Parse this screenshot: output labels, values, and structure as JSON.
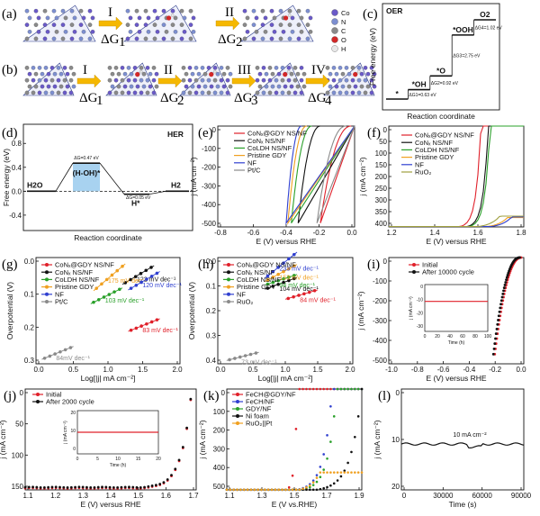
{
  "panel_a": {
    "label": "(a)",
    "steps": [
      "I",
      "II"
    ],
    "dg": [
      "ΔG",
      "ΔG"
    ],
    "dg_sub": [
      "1",
      "2"
    ]
  },
  "panel_b": {
    "label": "(b)",
    "steps": [
      "I",
      "II",
      "III",
      "IV"
    ],
    "dg": [
      "ΔG",
      "ΔG",
      "ΔG",
      "ΔG"
    ],
    "dg_sub": [
      "1",
      "2",
      "3",
      "4"
    ]
  },
  "atom_legend": [
    "Co",
    "N",
    "C",
    "O",
    "H"
  ],
  "colors": {
    "Co": "#6a5ac8",
    "N": "#7d8fd0",
    "C": "#8a8a8a",
    "O": "#d22828",
    "H": "#e8e8e8",
    "red": "#e0202a",
    "black": "#111111",
    "green": "#2aa02a",
    "orange": "#f0a020",
    "blue": "#3040d0",
    "gray": "#8a8a8a",
    "olive": "#a0a040",
    "box": "#a8d2f0"
  },
  "chart_data": [
    {
      "id": "c",
      "type": "energy-diagram",
      "label": "(c)",
      "title": "OER",
      "ylabel": "Free energy (eV)",
      "xlabel": "Reaction coordinate",
      "states": [
        "*",
        "*OH",
        "*O",
        "*OOH",
        "O2"
      ],
      "steps": [
        {
          "text": "ΔG1=0.63 eV",
          "value": 0.63
        },
        {
          "text": "ΔG2=0.92 eV",
          "value": 0.92
        },
        {
          "text": "ΔG3=2.75 eV",
          "value": 2.75
        },
        {
          "text": "ΔG4=1.02 eV",
          "value": 1.02
        }
      ]
    },
    {
      "id": "d",
      "type": "energy-diagram",
      "label": "(d)",
      "title": "HER",
      "ylabel": "Free energy (eV)",
      "xlabel": "Reaction coordinate",
      "yticks": [
        "0.8",
        "0.4",
        "0.0",
        "-0.4"
      ],
      "states": [
        "H2O",
        "(H-OH)*",
        "H*",
        "H2"
      ],
      "steps": [
        {
          "text": "ΔG=0.47 eV",
          "value": 0.47
        },
        {
          "text": "ΔG=0.05 eV",
          "value": 0.05
        }
      ]
    },
    {
      "id": "e",
      "type": "line",
      "label": "(e)",
      "xlabel": "E (V) versus RHE",
      "ylabel": "j (mA cm⁻²)",
      "xticks": [
        "-0.8",
        "-0.6",
        "-0.4",
        "-0.2",
        "0.0"
      ],
      "yticks": [
        "0",
        "-100",
        "-200",
        "-300",
        "-400",
        "-500"
      ],
      "xlim": [
        -0.8,
        0.0
      ],
      "ylim": [
        -520,
        0
      ],
      "series": [
        {
          "name": "CoNₓ@GDY NS/NF",
          "color": "#e0202a",
          "onset": -0.02,
          "end": -0.2
        },
        {
          "name": "CoNₓ NS/NF",
          "color": "#111111",
          "onset": -0.2,
          "end": -0.33
        },
        {
          "name": "CoLDH NS/NF",
          "color": "#2aa02a",
          "onset": -0.25,
          "end": -0.37
        },
        {
          "name": "Pristine GDY",
          "color": "#f0a020",
          "onset": -0.28,
          "end": -0.39
        },
        {
          "name": "NF",
          "color": "#3040d0",
          "onset": -0.31,
          "end": -0.4
        },
        {
          "name": "Pt/C",
          "color": "#8a8a8a",
          "onset": -0.05,
          "end": -0.22
        }
      ]
    },
    {
      "id": "f",
      "type": "line",
      "label": "(f)",
      "xlabel": "E (V) versus RHE",
      "ylabel": "j (mA cm⁻²)",
      "xticks": [
        "1.2",
        "1.4",
        "1.6",
        "1.8"
      ],
      "yticks": [
        "0",
        "50",
        "100",
        "150",
        "200",
        "250",
        "300",
        "350",
        "400"
      ],
      "xlim": [
        1.1,
        1.85
      ],
      "ylim": [
        0,
        420
      ],
      "series": [
        {
          "name": "CoNₓ@GDY NS/NF",
          "color": "#e0202a",
          "onset": 1.5
        },
        {
          "name": "CoNₓ NS/NF",
          "color": "#111111",
          "onset": 1.54
        },
        {
          "name": "CoLDH NS/NF",
          "color": "#2aa02a",
          "onset": 1.55
        },
        {
          "name": "Pristine GDY",
          "color": "#f0a020",
          "onset": 1.65
        },
        {
          "name": "NF",
          "color": "#3040d0",
          "onset": 1.67
        },
        {
          "name": "RuO₂",
          "color": "#a0a040",
          "onset": 1.6
        }
      ]
    },
    {
      "id": "g",
      "type": "scatter",
      "label": "(g)",
      "xlabel": "Log[|j| mA cm⁻²]",
      "ylabel": "Overpotential (V)",
      "xticks": [
        "0.0",
        "0.5",
        "1.0",
        "1.5",
        "2.0"
      ],
      "yticks": [
        "0.0",
        "0.1",
        "0.2",
        "0.3"
      ],
      "xlim": [
        0,
        2.5
      ],
      "ylim": [
        -0.02,
        0.36
      ],
      "series": [
        {
          "name": "CoNₓ@GDY NS/NF",
          "color": "#e0202a",
          "x0": 1.65,
          "y0": 0.1,
          "slope": 0.083,
          "label": "83 mV dec⁻¹"
        },
        {
          "name": "CoNₓ NS/NF",
          "color": "#111111",
          "x0": 1.55,
          "y0": 0.27,
          "slope": 0.122,
          "label": "122 mV dec⁻¹"
        },
        {
          "name": "CoLDH NS/NF",
          "color": "#2aa02a",
          "x0": 1.0,
          "y0": 0.2,
          "slope": 0.103,
          "label": "103 mV dec⁻¹"
        },
        {
          "name": "Pristine GDY",
          "color": "#f0a020",
          "x0": 1.05,
          "y0": 0.25,
          "slope": 0.175,
          "label": "175 mV dec⁻¹"
        },
        {
          "name": "NF",
          "color": "#3040d0",
          "x0": 1.65,
          "y0": 0.25,
          "slope": 0.12,
          "label": "120 mV dec⁻¹"
        },
        {
          "name": "Pt/C",
          "color": "#8a8a8a",
          "x0": 0.15,
          "y0": 0.0,
          "slope": 0.084,
          "label": "84mV dec⁻¹"
        }
      ]
    },
    {
      "id": "h",
      "type": "scatter",
      "label": "(h)",
      "xlabel": "Log[|j| mA cm⁻²]",
      "ylabel": "Overpotential (V)",
      "xticks": [
        "0.0",
        "0.5",
        "1.0",
        "1.5",
        "2.0"
      ],
      "yticks": [
        "0.0",
        "0.1",
        "0.2",
        "0.3",
        "0.4"
      ],
      "xlim": [
        0,
        2.3
      ],
      "ylim": [
        -0.02,
        0.5
      ],
      "series": [
        {
          "name": "CoNₓ@GDY NS/NF",
          "color": "#e0202a",
          "x0": 1.2,
          "y0": 0.3,
          "slope": 0.084,
          "label": "84 mV dec⁻¹"
        },
        {
          "name": "CoNₓ NS/NF",
          "color": "#111111",
          "x0": 0.85,
          "y0": 0.35,
          "slope": 0.104,
          "label": "104 mV dec⁻¹"
        },
        {
          "name": "CoLDH NS/NF",
          "color": "#2aa02a",
          "x0": 0.85,
          "y0": 0.37,
          "slope": 0.094,
          "label": "94 mV dec⁻¹"
        },
        {
          "name": "Pristine GDY",
          "color": "#f0a020",
          "x0": 0.85,
          "y0": 0.39,
          "slope": 0.153,
          "label": "153 mV dec⁻¹"
        },
        {
          "name": "NF",
          "color": "#3040d0",
          "x0": 0.85,
          "y0": 0.41,
          "slope": 0.233,
          "label": "233 mV dec⁻¹"
        },
        {
          "name": "RuO₂",
          "color": "#8a8a8a",
          "x0": 0.2,
          "y0": 0.0,
          "slope": 0.073,
          "label": "73 mV dec⁻¹"
        }
      ]
    },
    {
      "id": "i",
      "type": "line",
      "label": "(i)",
      "xlabel": "E (V) versus RHE",
      "ylabel": "j (mA cm⁻²)",
      "xticks": [
        "-1.0",
        "-0.8",
        "-0.6",
        "-0.4",
        "-0.2",
        "0.0"
      ],
      "yticks": [
        "0",
        "-100",
        "-200",
        "-300",
        "-400",
        "-500"
      ],
      "xlim": [
        -1.0,
        0.0
      ],
      "ylim": [
        -520,
        0
      ],
      "series": [
        {
          "name": "Initial",
          "color": "#e0202a"
        },
        {
          "name": "After 10000 cycle",
          "color": "#111111"
        }
      ],
      "inset": {
        "xlabel": "Time (h)",
        "ylabel": "j (mA cm⁻²)",
        "xticks": [
          "0",
          "20",
          "40",
          "60",
          "80",
          "100"
        ],
        "yticks": [
          "0",
          "-10",
          "-20",
          "-30"
        ],
        "value": -10
      }
    },
    {
      "id": "j",
      "type": "line",
      "label": "(j)",
      "xlabel": "E (V) versus RHE",
      "ylabel": "j (mA cm⁻²)",
      "xticks": [
        "1.1",
        "1.2",
        "1.3",
        "1.4",
        "1.5",
        "1.6",
        "1.7"
      ],
      "yticks": [
        "0",
        "50",
        "100",
        "150"
      ],
      "xlim": [
        1.1,
        1.72
      ],
      "ylim": [
        0,
        175
      ],
      "series": [
        {
          "name": "Initial",
          "color": "#e0202a"
        },
        {
          "name": "After 2000 cycle",
          "color": "#111111"
        }
      ],
      "inset": {
        "xlabel": "Time (h)",
        "ylabel": "j (mA cm⁻²)",
        "xticks": [
          "0",
          "5",
          "10",
          "15",
          "20"
        ],
        "yticks": [
          "0",
          "10",
          "20"
        ],
        "value": 10
      }
    },
    {
      "id": "k",
      "type": "line",
      "label": "(k)",
      "xlabel": "E (V vs.RHE)",
      "ylabel": "j (mA cm⁻²)",
      "xticks": [
        "1.1",
        "1.3",
        "1.5",
        "1.7",
        "1.9"
      ],
      "yticks": [
        "0",
        "100",
        "200",
        "300",
        "400",
        "500"
      ],
      "xlim": [
        1.1,
        2.0
      ],
      "ylim": [
        0,
        520
      ],
      "series": [
        {
          "name": "FeCH@GDY/NF",
          "color": "#e0202a",
          "onset": 1.5
        },
        {
          "name": "FeCH/NF",
          "color": "#3040d0",
          "onset": 1.57
        },
        {
          "name": "GDY/NF",
          "color": "#2aa02a",
          "onset": 1.6
        },
        {
          "name": "Ni foam",
          "color": "#111111",
          "onset": 1.7
        },
        {
          "name": "RuO₂||Pt",
          "color": "#f0a020",
          "onset": 1.58
        }
      ]
    },
    {
      "id": "l",
      "type": "line",
      "label": "(l)",
      "xlabel": "Time (s)",
      "ylabel": "j (mA cm⁻²)",
      "xticks": [
        "0",
        "30000",
        "60000",
        "90000"
      ],
      "yticks": [
        "0",
        "10",
        "20"
      ],
      "xlim": [
        0,
        90000
      ],
      "ylim": [
        0,
        22
      ],
      "annotation": "10 mA cm⁻²",
      "series": [
        {
          "name": "",
          "color": "#111111",
          "value": 10
        }
      ]
    }
  ]
}
